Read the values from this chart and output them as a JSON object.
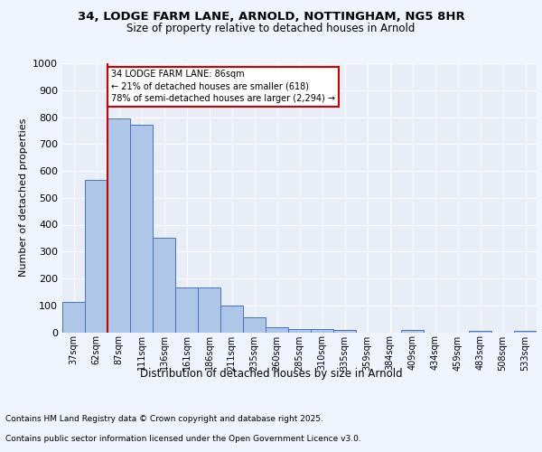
{
  "title_line1": "34, LODGE FARM LANE, ARNOLD, NOTTINGHAM, NG5 8HR",
  "title_line2": "Size of property relative to detached houses in Arnold",
  "xlabel": "Distribution of detached houses by size in Arnold",
  "ylabel": "Number of detached properties",
  "categories": [
    "37sqm",
    "62sqm",
    "87sqm",
    "111sqm",
    "136sqm",
    "161sqm",
    "186sqm",
    "211sqm",
    "235sqm",
    "260sqm",
    "285sqm",
    "310sqm",
    "335sqm",
    "359sqm",
    "384sqm",
    "409sqm",
    "434sqm",
    "459sqm",
    "483sqm",
    "508sqm",
    "533sqm"
  ],
  "values": [
    113,
    565,
    795,
    770,
    350,
    168,
    168,
    100,
    55,
    20,
    13,
    13,
    10,
    0,
    0,
    8,
    0,
    0,
    5,
    0,
    5
  ],
  "bar_color": "#aec6e8",
  "bar_edge_color": "#4472c4",
  "background_color": "#dde4f0",
  "plot_bg_color": "#e8eef8",
  "grid_color": "#ffffff",
  "fig_bg_color": "#f0f4fc",
  "vline_color": "#cc0000",
  "vline_x_index": 2,
  "annotation_text": "34 LODGE FARM LANE: 86sqm\n← 21% of detached houses are smaller (618)\n78% of semi-detached houses are larger (2,294) →",
  "annotation_box_color": "#cc0000",
  "ylim": [
    0,
    1000
  ],
  "yticks": [
    0,
    100,
    200,
    300,
    400,
    500,
    600,
    700,
    800,
    900,
    1000
  ],
  "footer_line1": "Contains HM Land Registry data © Crown copyright and database right 2025.",
  "footer_line2": "Contains public sector information licensed under the Open Government Licence v3.0."
}
